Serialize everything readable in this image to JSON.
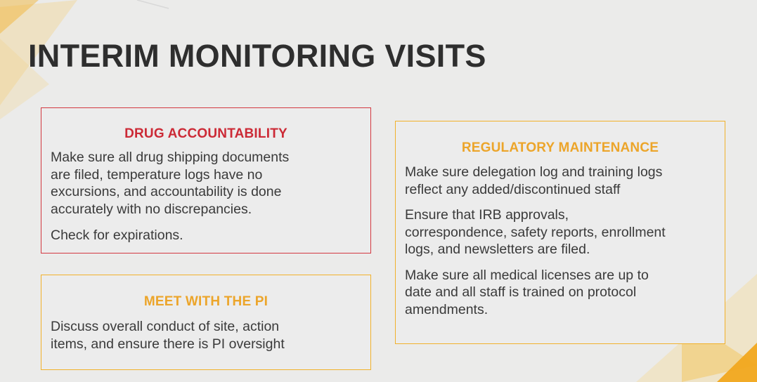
{
  "slide": {
    "title": "INTERIM MONITORING VISITS",
    "colors": {
      "red_accent": "#d33840",
      "gold_accent": "#f1b12b",
      "background": "#ebebea",
      "text": "#3a3a3a"
    }
  },
  "boxes": {
    "drug_accountability": {
      "heading": "DRUG ACCOUNTABILITY",
      "paragraphs": [
        [
          "Make sure all drug shipping documents",
          "are filed, temperature logs have no",
          "excursions, and accountability is done",
          "accurately with no discrepancies."
        ],
        [
          "Check for expirations."
        ]
      ]
    },
    "meet_with_pi": {
      "heading": "MEET WITH THE PI",
      "paragraphs": [
        [
          "Discuss overall conduct of site, action",
          "items, and ensure there is PI oversight"
        ]
      ]
    },
    "regulatory_maintenance": {
      "heading": "REGULATORY MAINTENANCE",
      "paragraphs": [
        [
          "Make sure delegation log and training logs",
          "reflect any added/discontinued staff"
        ],
        [
          "Ensure that IRB approvals,",
          "correspondence, safety reports, enrollment",
          "logs, and newsletters are filed."
        ],
        [
          "Make sure all medical licenses are up to",
          "date and all staff is trained on protocol",
          "amendments."
        ]
      ]
    }
  }
}
